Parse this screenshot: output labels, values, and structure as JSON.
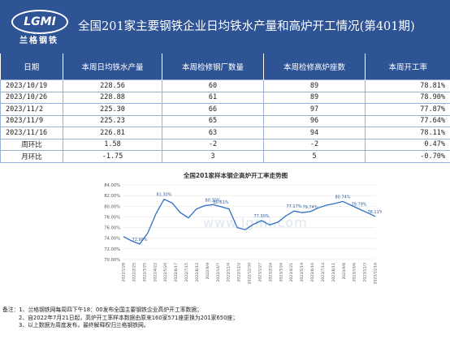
{
  "header": {
    "logo_mark": "LGMI",
    "logo_text": "兰格钢铁",
    "title": "全国201家主要钢铁企业日均铁水产量和高炉开工情况(第401期)"
  },
  "table": {
    "headers": [
      "日期",
      "本周日均铁水产量",
      "本周检修钢厂数量",
      "本周检修高炉座数",
      "本周开工率"
    ],
    "rows": [
      [
        "2023/10/19",
        "228.56",
        "60",
        "89",
        "78.81%"
      ],
      [
        "2023/10/26",
        "228.88",
        "61",
        "89",
        "78.90%"
      ],
      [
        "2023/11/2",
        "225.30",
        "66",
        "97",
        "77.87%"
      ],
      [
        "2023/11/9",
        "225.23",
        "65",
        "96",
        "77.64%"
      ],
      [
        "2023/11/16",
        "226.81",
        "63",
        "94",
        "78.11%"
      ]
    ],
    "wow": {
      "label": "周环比",
      "values": [
        "1.58",
        "-2",
        "-2",
        "0.47%"
      ]
    },
    "mom": {
      "label": "月环比",
      "values": [
        "-1.75",
        "3",
        "5",
        "-0.70%"
      ]
    }
  },
  "colors": {
    "header_bg": "#2f5496",
    "up": "#e81c1c",
    "down": "#1e9e3c",
    "line": "#2e6fc4"
  },
  "chart_data": {
    "type": "line",
    "title": "全国201家样本钢企高炉开工率走势图",
    "ylim": [
      70,
      84
    ],
    "yticks": [
      "84.00%",
      "82.00%",
      "80.00%",
      "78.00%",
      "76.00%",
      "74.00%",
      "72.00%",
      "70.00%"
    ],
    "x": [
      "2022/1/28",
      "2022/2/18",
      "2022/3/11",
      "2022/4/1",
      "2022/4/22",
      "2022/5/13",
      "2022/6/3",
      "2022/6/24",
      "2022/7/15",
      "2022/8/5",
      "2022/8/26",
      "2022/9/16",
      "2022/10/7",
      "2022/10/28",
      "2022/11/18",
      "2022/12/9",
      "2022/12/30",
      "2023/1/20",
      "2023/2/10",
      "2023/3/3",
      "2023/3/24",
      "2023/4/14",
      "2023/5/5",
      "2023/5/26",
      "2023/6/16",
      "2023/7/7",
      "2023/7/28",
      "2023/8/18",
      "2023/9/8",
      "2023/9/29",
      "2023/10/20",
      "2023/11/10"
    ],
    "xtick_labels": [
      "2022/1/28",
      "2022/2/25",
      "2022/3/25",
      "2022/4/22",
      "2022/5/20",
      "2022/6/17",
      "2022/7/15",
      "2022/8/12",
      "2022/9/9",
      "2022/10/7",
      "2022/11/4",
      "2022/12/2",
      "2022/12/30",
      "2023/1/27",
      "2023/2/24",
      "2023/3/24",
      "2023/4/21",
      "2023/5/19",
      "2023/6/16",
      "2023/7/14",
      "2023/8/11",
      "2023/9/8",
      "2023/10/6",
      "2023/11/3",
      "2023/11/16"
    ],
    "series": [
      {
        "values": [
          74.3,
          73.5,
          72.9,
          75.0,
          78.6,
          81.3,
          80.6,
          78.8,
          77.8,
          79.5,
          80.1,
          80.3,
          79.9,
          79.5,
          76.0,
          75.6,
          76.6,
          77.3,
          76.5,
          77.0,
          78.2,
          79.1,
          78.8,
          79.0,
          79.7,
          80.2,
          80.5,
          80.9,
          80.2,
          79.5,
          78.8,
          78.1
        ]
      }
    ],
    "annotations": [
      "81.30%",
      "72.90%",
      "80.30%",
      "80.61%",
      "77.30%",
      "77.17%",
      "79.74%",
      "80.74%",
      "79.79%",
      "78.11%"
    ],
    "ylabel": ""
  },
  "notes": [
    "备注：1、兰格钢铁网每周四下午18：00发布全国主要钢铁企业高炉开工率数据；",
    "2、自2022年7月21日起，高炉开工率样本数据由原来160家571座更换为201家650座；",
    "3、以上数据为周度发布，最终解释权归兰格钢铁网。"
  ],
  "watermark": "www.lgmi.com"
}
